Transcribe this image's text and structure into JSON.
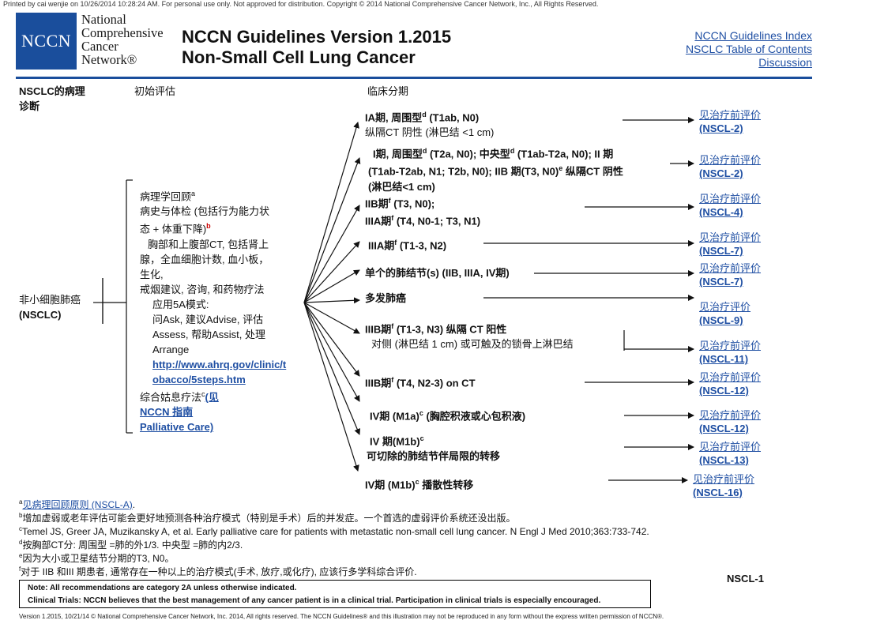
{
  "print_note": "Printed by cai wenjie on 10/26/2014 10:28:24 AM. For personal use only. Not approved for distribution. Copyright © 2014 National Comprehensive Cancer Network, Inc., All Rights Reserved.",
  "logo": {
    "mark": "NCCN",
    "line1": "National",
    "line2": "Comprehensive",
    "line3": "Cancer",
    "line4": "Network®"
  },
  "title": {
    "line1": "NCCN Guidelines Version 1.2015",
    "line2": "Non-Small Cell Lung Cancer"
  },
  "nav": {
    "index": "NCCN Guidelines Index",
    "toc": "NSCLC Table of Contents",
    "discussion": "Discussion"
  },
  "columns": {
    "pathology_line1": "NSCLC的病理",
    "pathology_line2": "诊断",
    "initial": "初始评估",
    "clinical": "临床分期"
  },
  "diagnosis": {
    "line1": "非小细胞肺癌",
    "line2": "(NSCLC)"
  },
  "eval": {
    "l1": "病理学回顾",
    "l1_sup": "a",
    "l2": "病史与体检 (包括行为能力状",
    "l3": "态 + 体重下降)",
    "l3_sup": "b",
    "l4": "胸部和上腹部CT, 包括肾上",
    "l5": "腺，全血细胞计数, 血小板，",
    "l6": "生化,",
    "l7": "戒烟建议, 咨询, 和药物疗法",
    "l8": "应用5A模式:",
    "l9": "问Ask, 建议Advise, 评估",
    "l10": "Assess, 帮助Assist, 处理",
    "l11": "Arrange",
    "l12": "http://www.ahrq.gov/clinic/t",
    "l13": "obacco/5steps.htm",
    "l14": "综合姑息疗法",
    "l14_sup": "c",
    "l14b": "(见",
    "l15": "NCCN 指南",
    "l16": "Palliative Care)"
  },
  "stages": [
    {
      "a": "IA期, 周围型",
      "sup1": "d",
      "b": " (T1ab, N0)",
      "line2": "纵隔CT 阴性 (淋巴结 <1 cm)"
    },
    {
      "a": "I期, 周围型",
      "sup1": "d",
      "b": " (T2a, N0); 中央型",
      "sup2": "d",
      "c": " (T1ab-T2a, N0); II 期",
      "line2": "(T1ab-T2ab, N1; T2b, N0); IIB 期(T3, N0)",
      "sup3": "e",
      "line2b": " 纵隔CT 阴性",
      "line3": "(淋巴结<1 cm)"
    },
    {
      "a": "IIB期",
      "sup1": "f",
      "b": " (T3, N0);",
      "line2a": "IIIA期",
      "sup2": "f",
      "line2b": " (T4, N0-1; T3, N1)"
    },
    {
      "a": "IIIA期",
      "sup1": "f",
      "b": " (T1-3, N2)"
    },
    {
      "a": "单个的肺结节(s) (IIB, IIIA, IV期)"
    },
    {
      "a": "多发肺癌"
    },
    {
      "a": "IIIB期",
      "sup1": "f",
      "b": " (T1-3, N3) 纵隔 CT 阳性",
      "line2": "对侧 (淋巴结   1 cm) 或可触及的锁骨上淋巴结"
    },
    {
      "a": "IIIB期",
      "sup1": "f",
      "b": " (T4, N2-3) on CT"
    },
    {
      "a": "IV期 (M1a)",
      "sup1": "c",
      "b": " (胸腔积液或心包积液)"
    },
    {
      "a": "IV 期(M1b)",
      "sup1": "c",
      "line2": "可切除的肺结节伴局限的转移"
    },
    {
      "a": "IV期 (M1b)",
      "sup1": "c",
      "b": " 播散性转移"
    }
  ],
  "see": [
    {
      "label": "见治疗前评价",
      "ref": "(NSCL-2)"
    },
    {
      "label": "见治疗前评价",
      "ref": "(NSCL-2)"
    },
    {
      "label": "见治疗前评价",
      "ref": "(NSCL-4)"
    },
    {
      "label": "见治疗前评价",
      "ref": "(NSCL-7)"
    },
    {
      "label": "见治疗前评价",
      "ref": "(NSCL-7)"
    },
    {
      "label": "见治疗评价",
      "ref": "(NSCL-9)"
    },
    {
      "label": "见治疗前评价",
      "ref": "(NSCL-11)"
    },
    {
      "label": "见治疗前评价",
      "ref": "(NSCL-12)"
    },
    {
      "label": "见治疗前评价",
      "ref": "(NSCL-12)"
    },
    {
      "label": "见治疗前评价",
      "ref": "(NSCL-13)"
    },
    {
      "label": "见治疗前评价",
      "ref": "(NSCL-16)"
    }
  ],
  "footnotes": {
    "a_sup": "a",
    "a_text": "见病理回顾原则 (NSCL-A)",
    "a_end": ".",
    "b_sup": "b",
    "b_text": "增加虚弱或老年评估可能会更好地预测各种治疗模式（特别是手术）后的并发症。一个首选的虚弱评价系统还没出版。",
    "c_sup": "c",
    "c_text": "Temel JS, Greer JA, Muzikansky A, et al. Early palliative care for patients with metastatic non-small cell lung cancer. N Engl J Med 2010;363:733-742.",
    "d_sup": "d",
    "d_text": "按胸部CT分: 周围型 =肺的外1/3. 中央型 =肺的内2/3.",
    "e_sup": "e",
    "e_text": "因为大小或卫星结节分期的T3, N0。",
    "f_sup": "f",
    "f_text": "对于 IIB 和III 期患者, 通常存在一种以上的治疗模式(手术, 放疗,或化疗), 应该行多学科综合评价."
  },
  "page_code": "NSCL-1",
  "note": {
    "line1": "Note:  All recommendations are category 2A unless otherwise indicated.",
    "line2": "Clinical Trials: NCCN believes that the best management of any cancer patient is in a clinical trial. Participation in clinical trials is especially encouraged."
  },
  "bottom": "Version 1.2015, 10/21/14 © National Comprehensive Cancer Network, Inc. 2014, All rights reserved. The NCCN Guidelines® and this illustration may not be reproduced in any form without the express written permission of NCCN®."
}
